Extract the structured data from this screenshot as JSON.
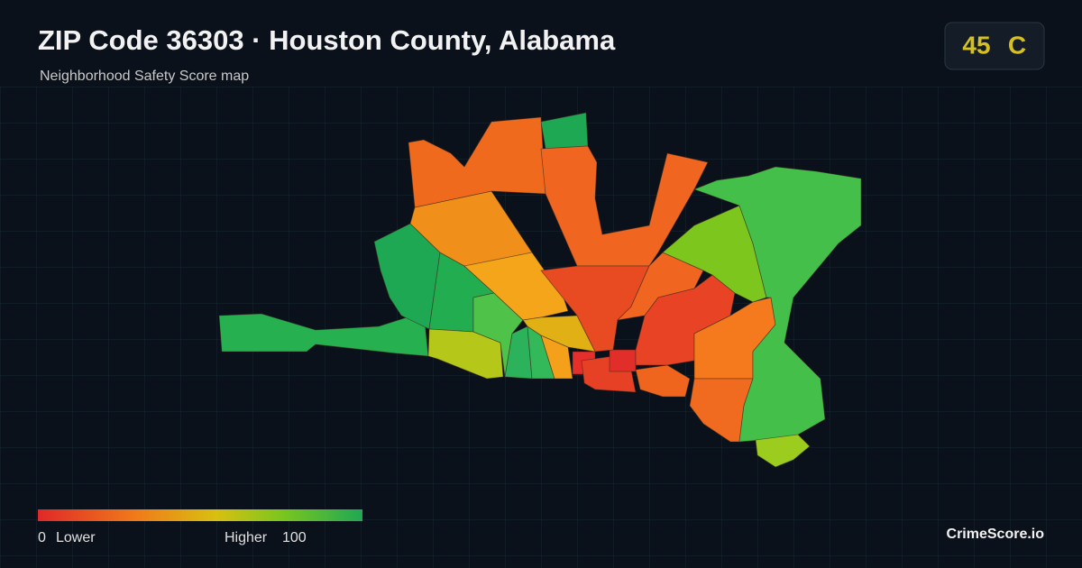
{
  "header": {
    "title": "ZIP Code 36303 · Houston County, Alabama",
    "subtitle": "Neighborhood Safety Score map"
  },
  "score": {
    "value": "45",
    "grade": "C"
  },
  "legend": {
    "min": "0",
    "min_label": "Lower",
    "max_label": "Higher",
    "max": "100"
  },
  "footer": {
    "brand": "CrimeScore.io"
  }
}
